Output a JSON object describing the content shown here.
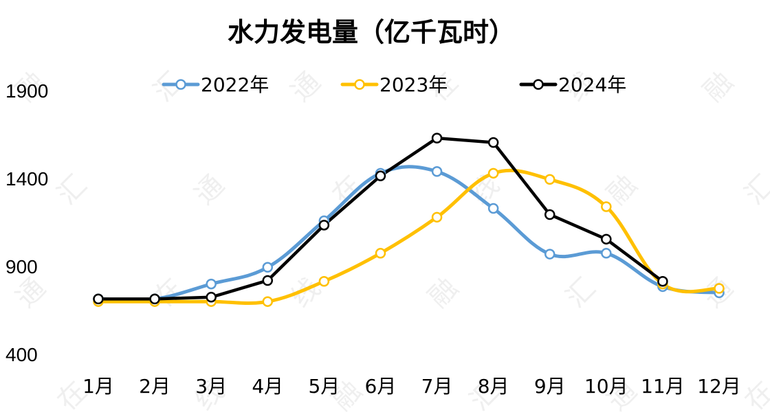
{
  "chart_data": {
    "type": "line",
    "title": "水力发电量（亿千瓦时）",
    "categories": [
      "1月",
      "2月",
      "3月",
      "4月",
      "5月",
      "6月",
      "7月",
      "8月",
      "9月",
      "10月",
      "11月",
      "12月"
    ],
    "ylim": [
      400,
      1900
    ],
    "yticks": [
      400,
      900,
      1400,
      1900
    ],
    "grid": false,
    "legend_position": "top",
    "series": [
      {
        "name": "2022年",
        "color": "#5b9bd5",
        "values": [
          715,
          715,
          800,
          895,
          1160,
          1430,
          1440,
          1230,
          970,
          975,
          785,
          750
        ]
      },
      {
        "name": "2023年",
        "color": "#ffc000",
        "values": [
          700,
          700,
          700,
          700,
          815,
          975,
          1180,
          1430,
          1395,
          1240,
          800,
          775
        ]
      },
      {
        "name": "2024年",
        "color": "#000000",
        "values": [
          715,
          715,
          725,
          820,
          1135,
          1415,
          1630,
          1605,
          1195,
          1055,
          815,
          null
        ]
      }
    ]
  }
}
